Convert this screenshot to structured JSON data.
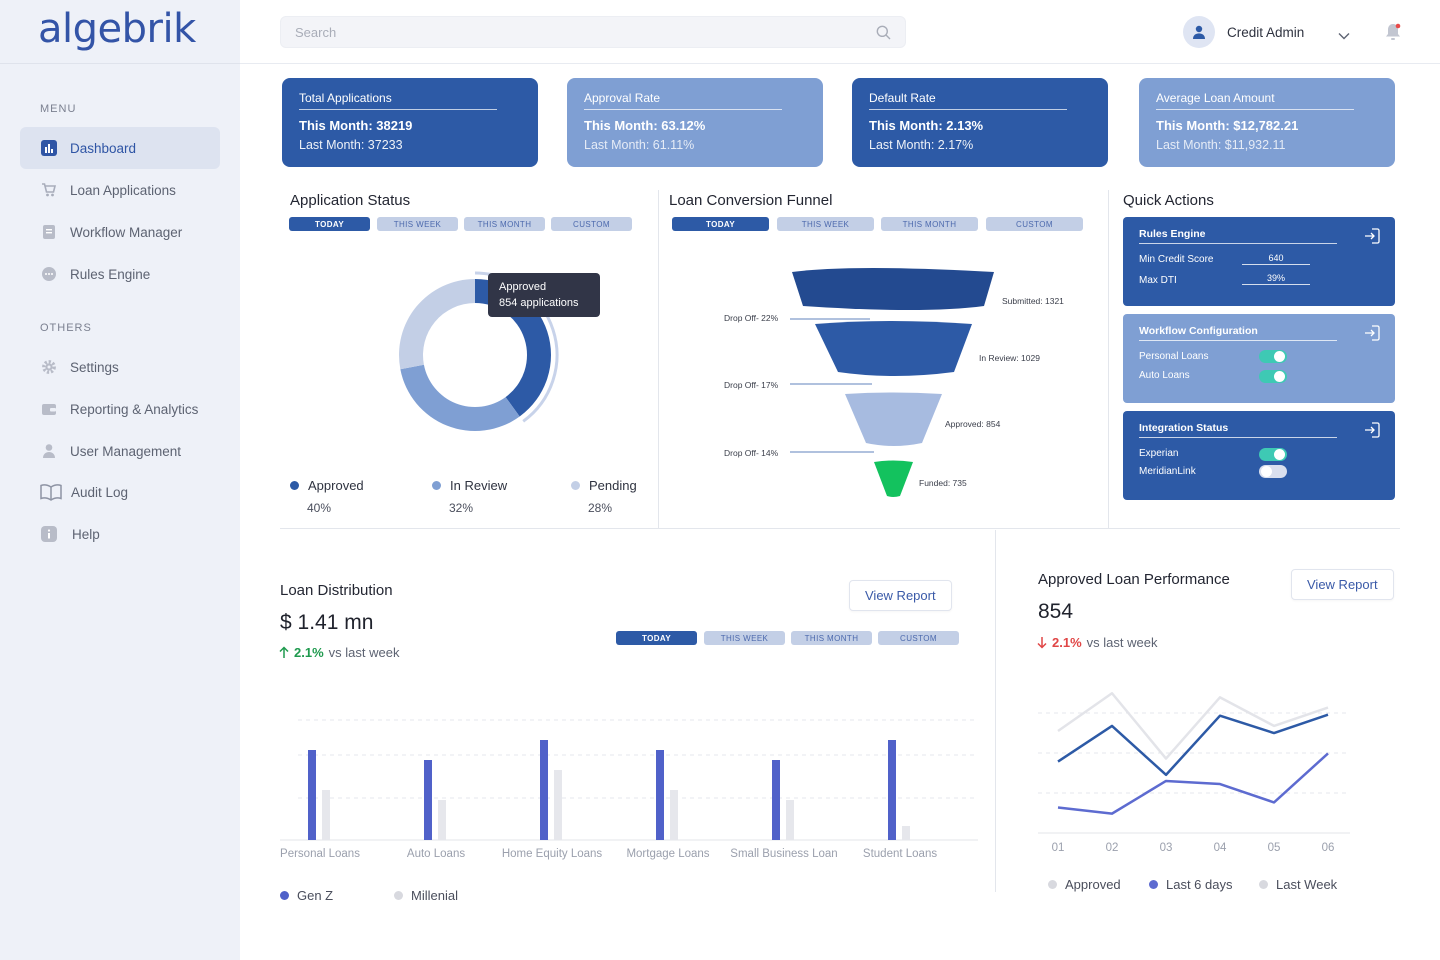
{
  "brand": {
    "logo": "algebrik"
  },
  "sidebar": {
    "menu_heading": "MENU",
    "others_heading": "OTHERS",
    "items": [
      {
        "label": "Dashboard",
        "icon": "bar-chart-icon",
        "active": true
      },
      {
        "label": "Loan Applications",
        "icon": "cart-icon"
      },
      {
        "label": "Workflow Manager",
        "icon": "document-icon"
      },
      {
        "label": "Rules Engine",
        "icon": "chat-bubble-icon"
      }
    ],
    "others": [
      {
        "label": "Settings",
        "icon": "gear-icon"
      },
      {
        "label": "Reporting & Analytics",
        "icon": "wallet-icon"
      },
      {
        "label": "User Management",
        "icon": "user-icon"
      },
      {
        "label": "Audit Log",
        "icon": "book-icon"
      },
      {
        "label": "Help",
        "icon": "info-icon"
      }
    ]
  },
  "header": {
    "search_placeholder": "Search",
    "user_name": "Credit Admin"
  },
  "kpis": [
    {
      "title": "Total Applications",
      "this_month": "This Month: 38219",
      "last_month": "Last Month: 37233",
      "style": "dark"
    },
    {
      "title": "Approval Rate",
      "this_month": "This Month: 63.12%",
      "last_month": "Last Month: 61.11%",
      "style": "light"
    },
    {
      "title": "Default Rate",
      "this_month": "This Month: 2.13%",
      "last_month": "Last Month: 2.17%",
      "style": "dark"
    },
    {
      "title": "Average Loan Amount",
      "this_month": "This Month: $12,782.21",
      "last_month": "Last Month: $11,932.11",
      "style": "light"
    }
  ],
  "filters": [
    "TODAY",
    "THIS WEEK",
    "THIS MONTH",
    "CUSTOM"
  ],
  "application_status": {
    "title": "Application Status",
    "tooltip_line1": "Approved",
    "tooltip_line2": "854 applications",
    "legend": [
      {
        "label": "Approved",
        "pct": "40%",
        "color": "#2d5aa6"
      },
      {
        "label": "In Review",
        "pct": "32%",
        "color": "#7f9fd3"
      },
      {
        "label": "Pending",
        "pct": "28%",
        "color": "#c3cfe6"
      }
    ]
  },
  "funnel": {
    "title": "Loan Conversion Funnel",
    "stages": [
      "Submitted: 1321",
      "In Review: 1029",
      "Approved: 854",
      "Funded: 735"
    ],
    "dropoffs": [
      "Drop Off- 22%",
      "Drop Off- 17%",
      "Drop Off- 14%"
    ]
  },
  "quick_actions": {
    "title": "Quick Actions",
    "rules_engine": {
      "title": "Rules Engine",
      "min_credit_label": "Min Credit Score",
      "min_credit_value": "640",
      "max_dti_label": "Max DTI",
      "max_dti_value": "39%"
    },
    "workflow": {
      "title": "Workflow Configuration",
      "items": [
        {
          "label": "Personal Loans",
          "on": true
        },
        {
          "label": "Auto Loans",
          "on": true
        }
      ]
    },
    "integration": {
      "title": "Integration Status",
      "items": [
        {
          "label": "Experian",
          "on": true
        },
        {
          "label": "MeridianLink",
          "on": false
        }
      ]
    }
  },
  "loan_distribution": {
    "title": "Loan Distribution",
    "value": "$ 1.41 mn",
    "delta": "2.1%",
    "delta_text": "vs last week",
    "button": "View Report",
    "legend": [
      "Gen Z",
      "Millenial"
    ]
  },
  "performance": {
    "title": "Approved Loan Performance",
    "value": "854",
    "delta": "2.1%",
    "delta_text": "vs last week",
    "button": "View Report",
    "legend": [
      "Approved",
      "Last 6 days",
      "Last Week"
    ]
  },
  "chart_data": [
    {
      "type": "pie",
      "title": "Application Status",
      "labels": [
        "Approved",
        "In Review",
        "Pending"
      ],
      "values": [
        40,
        32,
        28
      ],
      "colors": [
        "#2d5aa6",
        "#7f9fd3",
        "#c3cfe6"
      ]
    },
    {
      "type": "bar",
      "title": "Loan Distribution",
      "categories": [
        "Personal Loans",
        "Auto Loans",
        "Home Equity Loans",
        "Mortgage Loans",
        "Small Business Loan",
        "Student Loans"
      ],
      "series": [
        {
          "name": "Gen Z",
          "values": [
            90,
            80,
            100,
            90,
            80,
            100
          ],
          "color": "#5061c9"
        },
        {
          "name": "Millenial",
          "values": [
            50,
            40,
            70,
            50,
            40,
            14
          ],
          "color": "#e6e7ec"
        }
      ],
      "ylim": [
        0,
        120
      ],
      "grid": true
    },
    {
      "type": "line",
      "title": "Approved Loan Performance",
      "x": [
        "01",
        "02",
        "03",
        "04",
        "05",
        "06"
      ],
      "series": [
        {
          "name": "Approved",
          "values": [
            100,
            137,
            73,
            133,
            105,
            123
          ],
          "color": "#e3e4e9"
        },
        {
          "name": "Last 6 days",
          "values": [
            70,
            105,
            57,
            115,
            98,
            116
          ],
          "color": "#2d5aa6"
        },
        {
          "name": "Last Week",
          "values": [
            25,
            19,
            51,
            48,
            30,
            78
          ],
          "color": "#5d6bd0"
        }
      ],
      "ylim": [
        0,
        150
      ],
      "grid": true
    }
  ]
}
